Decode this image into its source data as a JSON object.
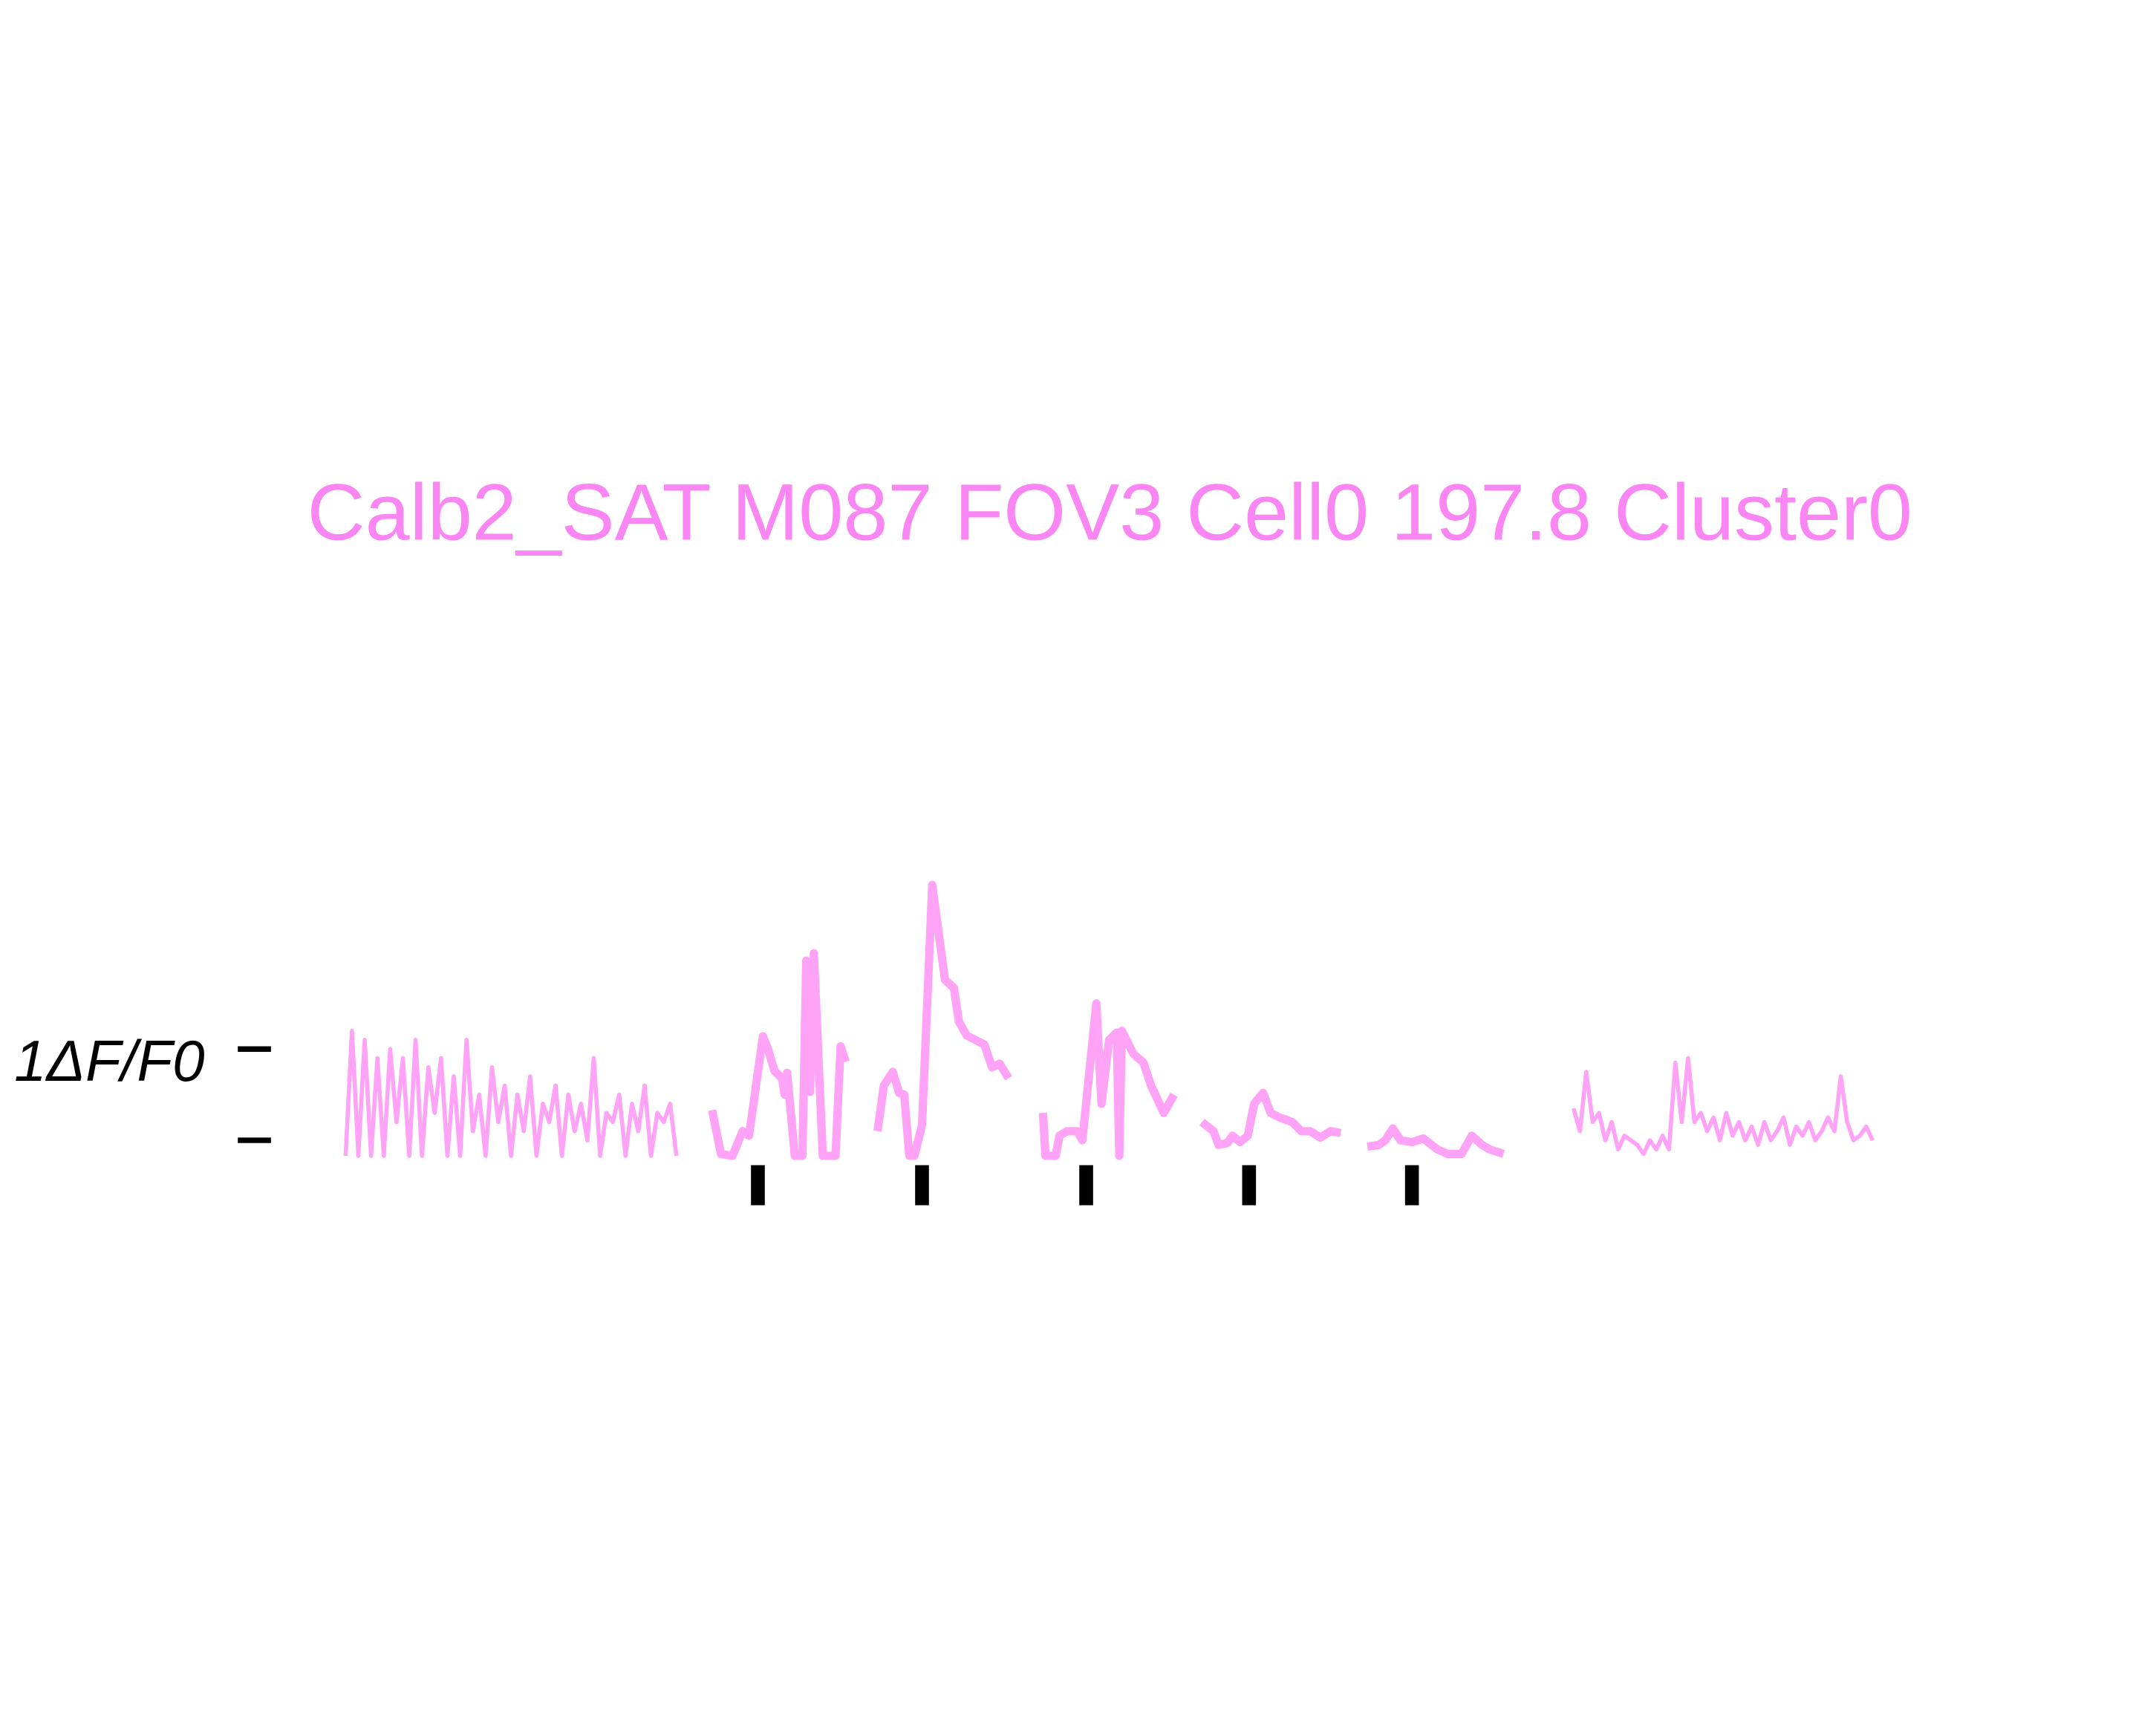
{
  "chart_data": {
    "type": "line",
    "title": "Calb2_SAT M087 FOV3 Cell0 197.8 Cluster0",
    "title_color": "#f986f2",
    "ylabel": "1ΔF/F0",
    "xlim": [
      0,
      120
    ],
    "ylim": [
      -0.5,
      3
    ],
    "yticks": [
      0,
      1
    ],
    "stim_times": [
      32.4,
      45.3,
      58.2,
      71.0,
      83.8
    ],
    "stim_color": "#000000",
    "series": [
      {
        "color": "#ffa3f7",
        "width": 3,
        "x": [
          0,
          0.5,
          1,
          1.5,
          2,
          2.5,
          3,
          3.5,
          4,
          4.5,
          5,
          5.5,
          6,
          6.5,
          7,
          7.5,
          8,
          8.5,
          9,
          9.5,
          10,
          10.5,
          11,
          11.5,
          12,
          12.5,
          13,
          13.5,
          14,
          14.5,
          15,
          15.5,
          16,
          16.5,
          17,
          17.5,
          18,
          18.5,
          19,
          19.5,
          20,
          20.5,
          21,
          21.5,
          22,
          22.5,
          23,
          23.5,
          24,
          24.5,
          25,
          25.5,
          26,
          26.5,
          96.5,
          97,
          97.5,
          98,
          98.5,
          99,
          99.5,
          100,
          100.5,
          101,
          101.5,
          102,
          102.5,
          103,
          103.5,
          104,
          104.5,
          105,
          105.5,
          106,
          106.5,
          107,
          107.5,
          108,
          108.5,
          109,
          109.5,
          110,
          110.5,
          111,
          111.5,
          112,
          112.5,
          113,
          113.5,
          114,
          114.5,
          115,
          115.5,
          116,
          116.5,
          117,
          117.5,
          118,
          118.5,
          119,
          119.5,
          120
        ],
        "values": [
          -0.17,
          1.2,
          -0.17,
          1.1,
          -0.17,
          0.9,
          -0.17,
          1.0,
          0.2,
          0.9,
          -0.17,
          1.1,
          -0.17,
          0.8,
          0.3,
          0.9,
          -0.17,
          0.7,
          -0.17,
          1.1,
          0.1,
          0.5,
          -0.17,
          0.8,
          0.2,
          0.6,
          -0.17,
          0.5,
          0.1,
          0.7,
          -0.17,
          0.4,
          0.2,
          0.6,
          -0.17,
          0.5,
          0.1,
          0.4,
          0.0,
          0.9,
          -0.17,
          0.3,
          0.2,
          0.5,
          -0.17,
          0.4,
          0.1,
          0.6,
          -0.17,
          0.3,
          0.2,
          0.4,
          -0.17,
          null,
          0.35,
          0.1,
          0.75,
          0.2,
          0.3,
          0.0,
          0.2,
          -0.1,
          0.05,
          0.0,
          -0.05,
          -0.15,
          0.0,
          -0.1,
          0.05,
          -0.1,
          0.85,
          0.2,
          0.9,
          0.2,
          0.3,
          0.1,
          0.25,
          0.0,
          0.3,
          0.05,
          0.2,
          0.0,
          0.15,
          -0.05,
          0.2,
          0.0,
          0.1,
          0.25,
          -0.05,
          0.15,
          0.05,
          0.2,
          0.0,
          0.1,
          0.25,
          0.1,
          0.7,
          0.2,
          0.0,
          0.05,
          0.15,
          0.0
        ]
      },
      {
        "color": "#ffa3f7",
        "width": 6,
        "x": [
          28.8,
          29.5,
          30.4,
          31.2,
          31.7,
          32.8,
          33.2,
          33.7,
          34.3,
          34.5,
          34.7,
          35.3,
          35.9,
          36.2,
          36.5,
          36.8,
          37.5,
          38.5,
          38.9,
          39.3,
          40,
          41.8,
          42.3,
          43.0,
          43.5,
          43.9,
          44.3,
          44.7,
          45.3,
          46.1,
          47.1,
          47.8,
          48.2,
          48.8,
          50.2,
          50.8,
          51.4,
          52.1,
          53,
          54.8,
          55.0,
          55.8,
          56.1,
          56.7,
          57.5,
          57.9,
          59.0,
          59.4,
          60.0,
          60.6,
          60.8,
          61.0,
          61.9,
          62.7,
          63.3,
          64.3,
          65.1,
          66,
          67.3,
          68.2,
          68.6,
          69.3,
          69.7,
          70.3,
          70.9,
          71.4,
          72.1,
          72.7,
          73.4,
          74.4,
          75.1,
          75.8,
          76.6,
          77.4,
          78.2,
          79,
          80.3,
          81.2,
          81.7,
          82.3,
          82.9,
          83.8,
          84.7,
          85.8,
          86.6,
          87.7,
          88.5,
          89.3,
          89.9,
          91.0
        ],
        "values": [
          0.33,
          -0.15,
          -0.17,
          0.1,
          0.05,
          1.14,
          1.0,
          0.76,
          0.68,
          0.5,
          0.74,
          -0.17,
          -0.17,
          1.97,
          0.53,
          2.05,
          -0.17,
          -0.17,
          1.03,
          0.86,
          null,
          0.1,
          0.6,
          0.75,
          0.52,
          0.5,
          -0.17,
          -0.17,
          0.17,
          2.8,
          1.76,
          1.67,
          1.3,
          1.15,
          1.05,
          0.8,
          0.84,
          0.68,
          null,
          0.3,
          -0.17,
          -0.17,
          0.05,
          0.1,
          0.1,
          0.0,
          1.5,
          0.4,
          1.1,
          1.18,
          -0.17,
          1.2,
          0.95,
          0.85,
          0.6,
          0.3,
          0.5,
          null,
          0.2,
          0.1,
          -0.05,
          -0.03,
          0.05,
          -0.02,
          0.05,
          0.4,
          0.52,
          0.3,
          0.25,
          0.2,
          0.1,
          0.1,
          0.03,
          0.1,
          0.08,
          null,
          -0.07,
          -0.05,
          0.0,
          0.13,
          0.0,
          -0.02,
          0.02,
          -0.1,
          -0.15,
          -0.15,
          0.05,
          -0.05,
          -0.1,
          -0.15
        ]
      }
    ]
  }
}
